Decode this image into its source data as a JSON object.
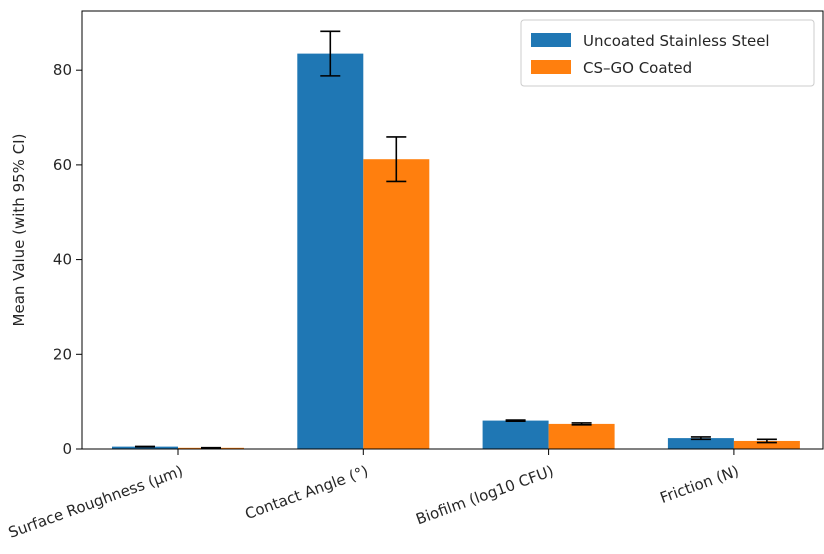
{
  "chart_data": {
    "type": "bar",
    "title": "",
    "xlabel": "",
    "ylabel": "Mean Value (with 95% CI)",
    "ylim": [
      0,
      92.5
    ],
    "yticks": [
      0,
      20,
      40,
      60,
      80
    ],
    "grid": false,
    "legend_position": "top-right",
    "categories": [
      "Surface Roughness (μm)",
      "Contact Angle (°)",
      "Biofilm (log10 CFU)",
      "Friction (N)"
    ],
    "series": [
      {
        "name": "Uncoated Stainless Steel",
        "color": "#1f77b4",
        "values": [
          0.5,
          83.5,
          6.0,
          2.3
        ],
        "error": [
          0.05,
          4.7,
          0.12,
          0.25
        ]
      },
      {
        "name": "CS–GO Coated",
        "color": "#ff7f0e",
        "values": [
          0.25,
          61.2,
          5.3,
          1.7
        ],
        "error": [
          0.04,
          4.7,
          0.2,
          0.35
        ]
      }
    ]
  }
}
